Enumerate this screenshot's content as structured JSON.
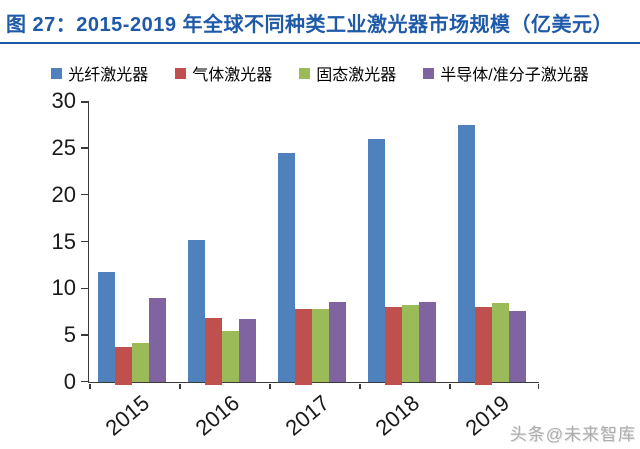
{
  "title": {
    "text": "图 27：2015-2019 年全球不同种类工业激光器市场规模（亿美元）"
  },
  "watermark": {
    "text": "头条@未来智库"
  },
  "colors": {
    "title": "#1F5AA8",
    "underline": "#1F5AA8",
    "axis": "#3A3A3A",
    "watermark": "#ACACAC",
    "series_fiber": "#4F81BD",
    "series_gas": "#C0504D",
    "series_solid": "#9BBB59",
    "series_semi": "#8064A2"
  },
  "chart_data": {
    "type": "bar",
    "title": "图 27：2015-2019 年全球不同种类工业激光器市场规模（亿美元）",
    "categories": [
      "2015",
      "2016",
      "2017",
      "2018",
      "2019"
    ],
    "series": [
      {
        "name": "光纤激光器",
        "color": "#4F81BD",
        "values": [
          11.7,
          15.2,
          24.5,
          26.0,
          27.4
        ]
      },
      {
        "name": "气体激光器",
        "color": "#C0504D",
        "values": [
          3.7,
          6.8,
          7.8,
          8.0,
          8.0
        ]
      },
      {
        "name": "固态激光器",
        "color": "#9BBB59",
        "values": [
          4.2,
          5.5,
          7.8,
          8.2,
          8.4
        ]
      },
      {
        "name": "半导体/准分子激光器",
        "color": "#8064A2",
        "values": [
          9.0,
          6.7,
          8.5,
          8.5,
          7.6
        ]
      }
    ],
    "xlabel": "",
    "ylabel": "",
    "ylim": [
      0,
      30
    ],
    "yticks": [
      0,
      5,
      10,
      15,
      20,
      25,
      30
    ],
    "grid": false,
    "legend_position": "top",
    "x_tick_label_rotation_deg": -40
  }
}
